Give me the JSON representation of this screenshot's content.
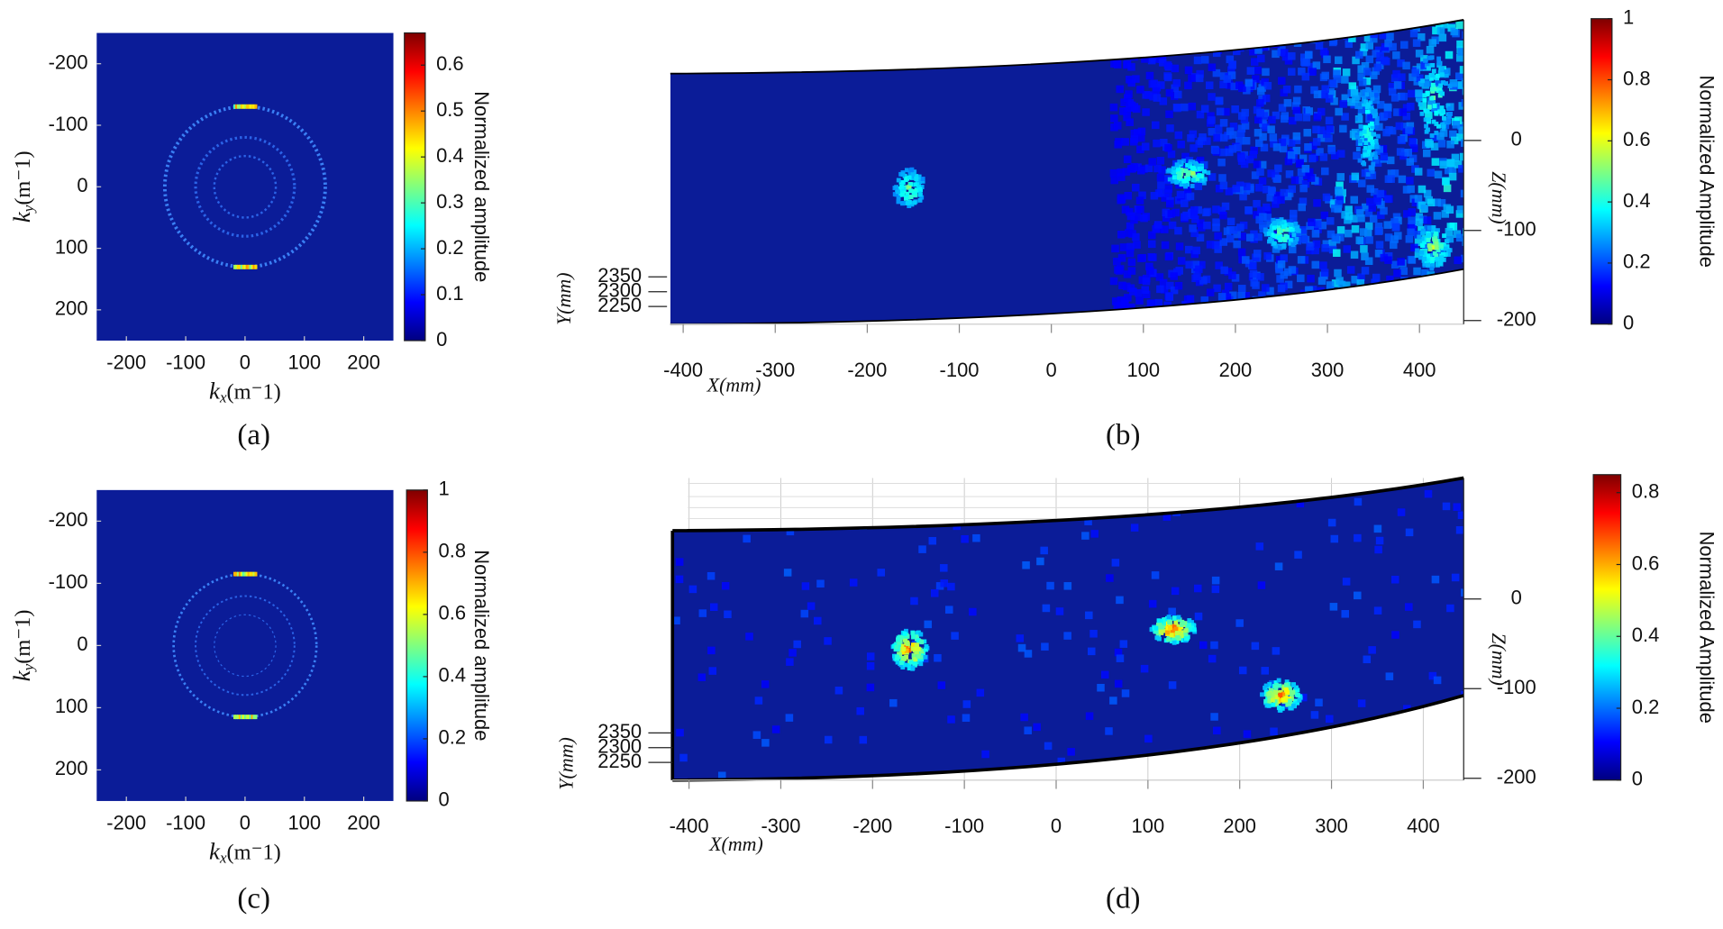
{
  "chart_data": [
    {
      "type": "heatmap",
      "caption": "(a)",
      "x_label": {
        "symbol": "k",
        "subscript": "x",
        "unit": "(m⁻1)"
      },
      "y_label": {
        "symbol": "k",
        "subscript": "y",
        "unit": "(m⁻1)"
      },
      "xlim": [
        -250,
        250
      ],
      "xticks": [
        -200,
        -100,
        0,
        100,
        200
      ],
      "ylim": [
        250,
        -250
      ],
      "yticks": [
        -200,
        -100,
        0,
        100,
        200
      ],
      "colorbar": {
        "label": "Normalized amplitude",
        "lim": [
          0,
          0.67
        ],
        "ticks": [
          0,
          0.1,
          0.2,
          0.3,
          0.4,
          0.5,
          0.6
        ]
      }
    },
    {
      "type": "surface",
      "caption": "(b)",
      "x_label": "X(mm)",
      "y_label": "Y(mm)",
      "z_label": "Z(mm)",
      "xlim": [
        -414,
        448
      ],
      "xticks": [
        -400,
        -300,
        -200,
        -100,
        0,
        100,
        200,
        300,
        400
      ],
      "ylim": [
        2220,
        2350
      ],
      "yticks": [
        2350,
        2300,
        2250
      ],
      "zlim": [
        -204,
        134
      ],
      "zticks": [
        0,
        -100,
        -200
      ],
      "colorbar": {
        "label": "Normalized Amplitude",
        "lim": [
          0,
          1
        ],
        "ticks": [
          0,
          0.2,
          0.4,
          0.6,
          0.8,
          1
        ]
      }
    },
    {
      "type": "heatmap",
      "caption": "(c)",
      "x_label": {
        "symbol": "k",
        "subscript": "x",
        "unit": "(m⁻1)"
      },
      "y_label": {
        "symbol": "k",
        "subscript": "y",
        "unit": "(m⁻1)"
      },
      "xlim": [
        -250,
        250
      ],
      "xticks": [
        -200,
        -100,
        0,
        100,
        200
      ],
      "ylim": [
        250,
        -250
      ],
      "yticks": [
        -200,
        -100,
        0,
        100,
        200
      ],
      "colorbar": {
        "label": "Normalized amplitude",
        "lim": [
          0,
          1
        ],
        "ticks": [
          0,
          0.2,
          0.4,
          0.6,
          0.8,
          1
        ]
      }
    },
    {
      "type": "surface",
      "caption": "(d)",
      "x_label": "X(mm)",
      "y_label": "Y(mm)",
      "z_label": "Z(mm)",
      "xlim": [
        -418,
        444
      ],
      "xticks": [
        -400,
        -300,
        -200,
        -100,
        0,
        100,
        200,
        300,
        400
      ],
      "ylim": [
        2220,
        2350
      ],
      "yticks": [
        2350,
        2300,
        2250
      ],
      "zlim": [
        -202,
        135
      ],
      "zticks": [
        0,
        -100,
        -200
      ],
      "colorbar": {
        "label": "Normalized Amplitude",
        "lim": [
          0,
          0.85
        ],
        "ticks": [
          0,
          0.2,
          0.4,
          0.6,
          0.8
        ]
      }
    }
  ]
}
